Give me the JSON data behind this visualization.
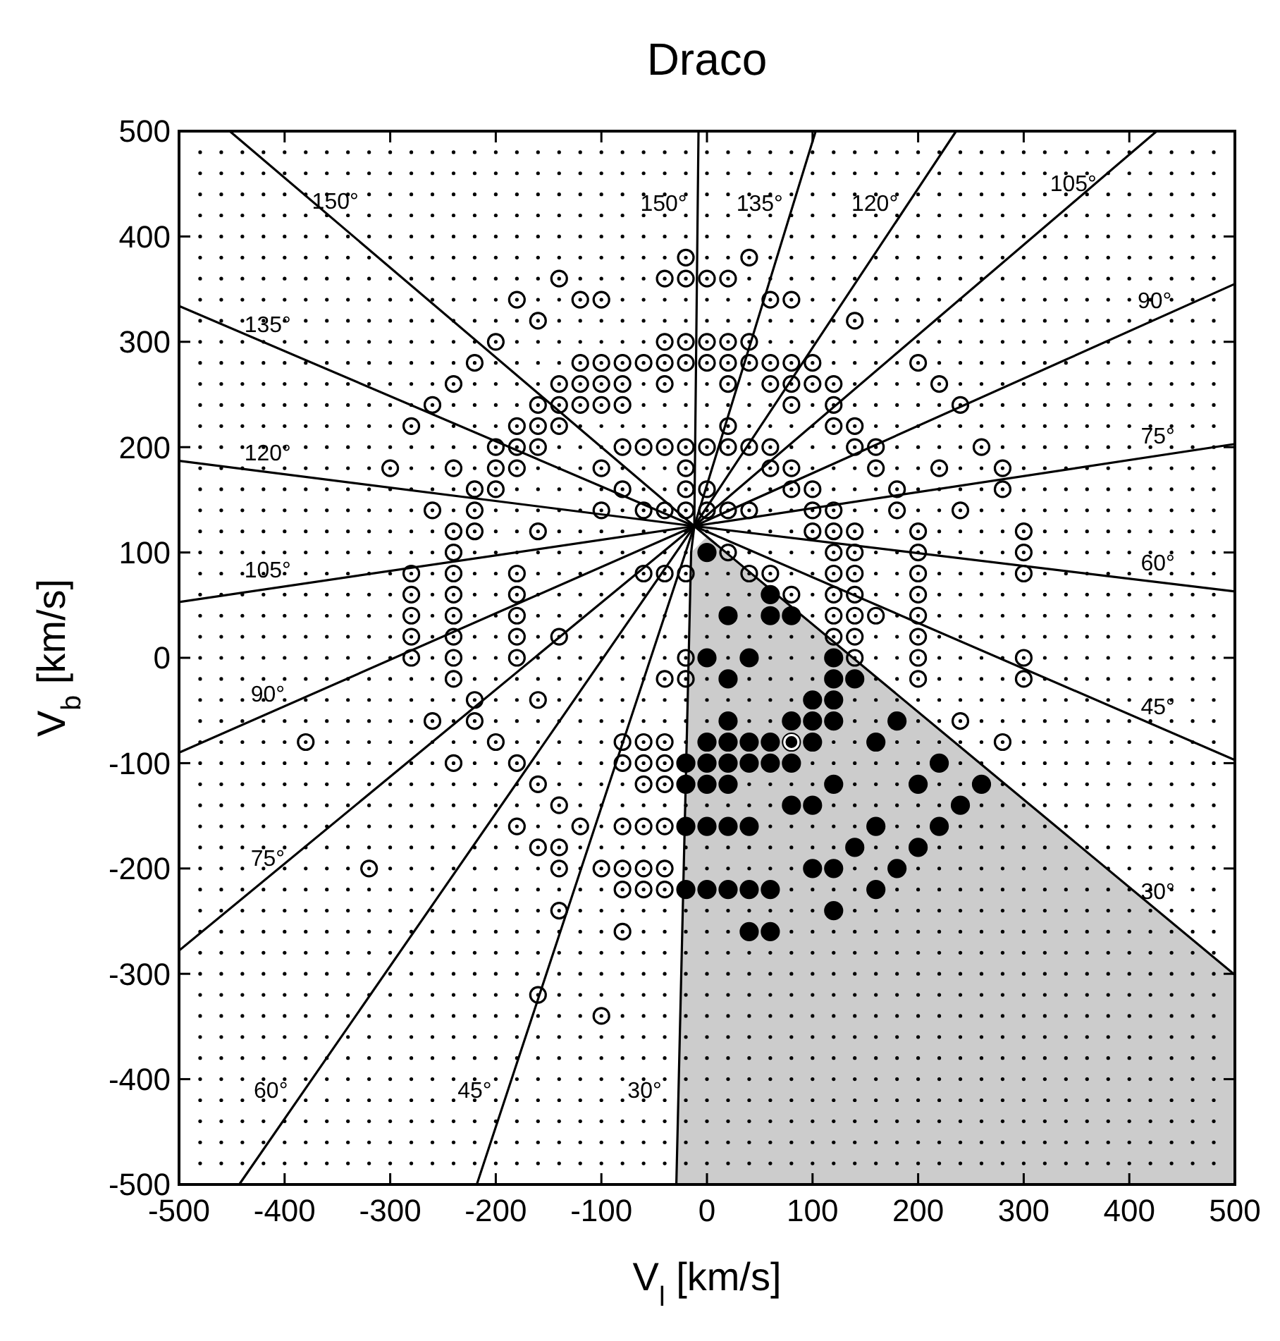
{
  "chart_data": {
    "type": "scatter",
    "title": "Draco",
    "xlabel": "V$_{l}$  [km/s]",
    "ylabel": "V$_{b}$  [km/s]",
    "xlim": [
      -500,
      500
    ],
    "ylim": [
      -500,
      500
    ],
    "xticks": [
      -500,
      -400,
      -300,
      -200,
      -100,
      0,
      100,
      200,
      300,
      400,
      500
    ],
    "yticks": [
      -500,
      -400,
      -300,
      -200,
      -100,
      0,
      100,
      200,
      300,
      400,
      500
    ],
    "series": [
      {
        "marker": "circle",
        "color": "#000000",
        "x": [
          -20,
          40,
          -140,
          -40,
          -20,
          0,
          20,
          -180,
          -120,
          -100,
          60,
          80,
          -160,
          140,
          -200,
          -40,
          -20,
          0,
          20,
          40,
          -220,
          -120,
          -100,
          -80,
          -60,
          -40,
          -20,
          0,
          20,
          40,
          60,
          80,
          100,
          200,
          -240,
          -140,
          -120,
          -100,
          -80,
          -40,
          20,
          60,
          80,
          100,
          120,
          220,
          -260,
          -160,
          -140,
          -120,
          -100,
          -80,
          80,
          120,
          240,
          -280,
          -180,
          -160,
          -140,
          20,
          120,
          140,
          -200,
          -180,
          -160,
          -80,
          -60,
          -40,
          -20,
          0,
          20,
          40,
          60,
          140,
          160,
          260,
          -300,
          -240,
          -200,
          -180,
          -100,
          -20,
          60,
          80,
          160,
          220,
          280,
          -220,
          -200,
          -80,
          -20,
          0,
          80,
          100,
          180,
          280,
          -260,
          -220,
          -100,
          -60,
          -40,
          -20,
          0,
          20,
          40,
          100,
          120,
          180,
          240,
          -240,
          -220,
          -160,
          100,
          120,
          140,
          200,
          300,
          -240,
          20,
          120,
          140,
          200,
          300,
          -280,
          -240,
          -180,
          -60,
          -40,
          -20,
          40,
          60,
          120,
          140,
          200,
          300,
          -280,
          -240,
          -180,
          80,
          120,
          140,
          200,
          -280,
          -240,
          -180,
          120,
          140,
          160,
          200,
          -280,
          -240,
          -180,
          -140,
          120,
          140,
          200,
          -280,
          -240,
          -180,
          -20,
          140,
          200,
          300,
          -240,
          -40,
          -20,
          200,
          300,
          -220,
          -160,
          -260,
          -220,
          240,
          -380,
          -200,
          -80,
          -60,
          -40,
          280,
          -240,
          -180,
          -80,
          -60,
          -40,
          -160,
          -60,
          -40,
          -140,
          -180,
          -120,
          -80,
          -60,
          -40,
          -160,
          -140,
          -320,
          -140,
          -100,
          -80,
          -60,
          -40,
          -80,
          -60,
          -40,
          -140,
          -80,
          -160,
          -100
        ],
        "values": [
          380,
          380,
          360,
          360,
          360,
          360,
          360,
          340,
          340,
          340,
          340,
          340,
          320,
          320,
          300,
          300,
          300,
          300,
          300,
          300,
          280,
          280,
          280,
          280,
          280,
          280,
          280,
          280,
          280,
          280,
          280,
          280,
          280,
          280,
          260,
          260,
          260,
          260,
          260,
          260,
          260,
          260,
          260,
          260,
          260,
          260,
          240,
          240,
          240,
          240,
          240,
          240,
          240,
          240,
          240,
          220,
          220,
          220,
          220,
          220,
          220,
          220,
          200,
          200,
          200,
          200,
          200,
          200,
          200,
          200,
          200,
          200,
          200,
          200,
          200,
          200,
          180,
          180,
          180,
          180,
          180,
          180,
          180,
          180,
          180,
          180,
          180,
          160,
          160,
          160,
          160,
          160,
          160,
          160,
          160,
          160,
          140,
          140,
          140,
          140,
          140,
          140,
          140,
          140,
          140,
          140,
          140,
          140,
          140,
          120,
          120,
          120,
          120,
          120,
          120,
          120,
          120,
          100,
          100,
          100,
          100,
          100,
          100,
          80,
          80,
          80,
          80,
          80,
          80,
          80,
          80,
          80,
          80,
          80,
          80,
          60,
          60,
          60,
          60,
          60,
          60,
          60,
          40,
          40,
          40,
          40,
          40,
          40,
          40,
          20,
          20,
          20,
          20,
          20,
          20,
          20,
          0,
          0,
          0,
          0,
          0,
          0,
          0,
          -20,
          -20,
          -20,
          -20,
          -20,
          -40,
          -40,
          -60,
          -60,
          -60,
          -80,
          -80,
          -80,
          -80,
          -80,
          -80,
          -100,
          -100,
          -100,
          -100,
          -100,
          -120,
          -120,
          -120,
          -140,
          -160,
          -160,
          -160,
          -160,
          -160,
          -180,
          -180,
          -200,
          -200,
          -200,
          -200,
          -200,
          -200,
          -220,
          -220,
          -220,
          -240,
          -260,
          -320,
          -340
        ]
      },
      {
        "marker": "circle",
        "color": "#000000",
        "x": [
          0,
          60,
          20,
          60,
          80,
          0,
          40,
          120,
          20,
          120,
          140,
          100,
          120,
          20,
          80,
          100,
          120,
          180,
          0,
          20,
          40,
          60,
          80,
          100,
          160,
          -20,
          0,
          20,
          40,
          60,
          80,
          220,
          -20,
          0,
          20,
          120,
          200,
          260,
          80,
          100,
          240,
          -20,
          0,
          20,
          40,
          160,
          220,
          140,
          200,
          100,
          120,
          180,
          -20,
          0,
          20,
          40,
          60,
          160,
          120,
          40,
          60
        ],
        "values": [
          100,
          60,
          40,
          40,
          40,
          0,
          0,
          0,
          -20,
          -20,
          -20,
          -40,
          -40,
          -60,
          -60,
          -60,
          -60,
          -60,
          -80,
          -80,
          -80,
          -80,
          -80,
          -80,
          -80,
          -100,
          -100,
          -100,
          -100,
          -100,
          -100,
          -100,
          -120,
          -120,
          -120,
          -120,
          -120,
          -120,
          -140,
          -140,
          -140,
          -160,
          -160,
          -160,
          -160,
          -160,
          -160,
          -180,
          -180,
          -200,
          -200,
          -200,
          -220,
          -220,
          -220,
          -220,
          -220,
          -220,
          -240,
          -260,
          -260
        ]
      },
      {
        "marker": "circle",
        "color": "#ffffff",
        "x": [
          80
        ],
        "values": [
          -80
        ]
      },
      {
        "type": "area",
        "color": "#cccccc",
        "x": [
          -29,
          -15,
          0,
          500,
          500
        ],
        "values": [
          -500,
          100,
          115,
          -301,
          -500
        ]
      },
      {
        "type": "line",
        "color": "#000000",
        "x": [
          -452,
          -12,
          -8
        ],
        "values": [
          500,
          125,
          500
        ]
      },
      {
        "type": "line",
        "color": "#000000",
        "x": [
          -500,
          -12,
          103
        ],
        "values": [
          334,
          125,
          500
        ]
      },
      {
        "type": "line",
        "color": "#000000",
        "x": [
          -500,
          -12,
          236
        ],
        "values": [
          187,
          125,
          500
        ]
      },
      {
        "type": "line",
        "color": "#000000",
        "x": [
          -500,
          -12,
          426
        ],
        "values": [
          53,
          125,
          500
        ]
      },
      {
        "type": "line",
        "color": "#000000",
        "x": [
          -500,
          -12,
          500
        ],
        "values": [
          -90,
          125,
          355
        ]
      },
      {
        "type": "line",
        "color": "#000000",
        "x": [
          -500,
          -12,
          500
        ],
        "values": [
          -278,
          125,
          203
        ]
      },
      {
        "type": "line",
        "color": "#000000",
        "x": [
          -443,
          -12,
          500
        ],
        "values": [
          -500,
          125,
          63
        ]
      },
      {
        "type": "line",
        "color": "#000000",
        "x": [
          -218,
          -12,
          500
        ],
        "values": [
          -500,
          125,
          -97
        ]
      },
      {
        "type": "line",
        "color": "#000000",
        "x": [
          -29,
          -15,
          -12,
          0,
          500
        ],
        "values": [
          -500,
          100,
          125,
          115,
          -301
        ]
      }
    ],
    "annotations": [
      {
        "text": "150°",
        "x": -352,
        "y": 415
      },
      {
        "text": "135°",
        "x": -416,
        "y": 298
      },
      {
        "text": "120°",
        "x": -416,
        "y": 176
      },
      {
        "text": "105°",
        "x": -416,
        "y": 65
      },
      {
        "text": "90°",
        "x": -416,
        "y": -53
      },
      {
        "text": "75°",
        "x": -416,
        "y": -209
      },
      {
        "text": "60°",
        "x": -381,
        "y": -410
      },
      {
        "text": "45°",
        "x": -188,
        "y": -410
      },
      {
        "text": "30°",
        "x": -27,
        "y": -410
      },
      {
        "text": "150°",
        "x": -9,
        "y": 432
      },
      {
        "text": "135°",
        "x": 82,
        "y": 432
      },
      {
        "text": "120°",
        "x": 191,
        "y": 432
      },
      {
        "text": "105°",
        "x": 347,
        "y": 432
      },
      {
        "text": "90°",
        "x": 424,
        "y": 321
      },
      {
        "text": "75°",
        "x": 427,
        "y": 192
      },
      {
        "text": "60°",
        "x": 427,
        "y": 72
      },
      {
        "text": "45°",
        "x": 427,
        "y": -65
      },
      {
        "text": "30°",
        "x": 427,
        "y": -240
      }
    ]
  }
}
